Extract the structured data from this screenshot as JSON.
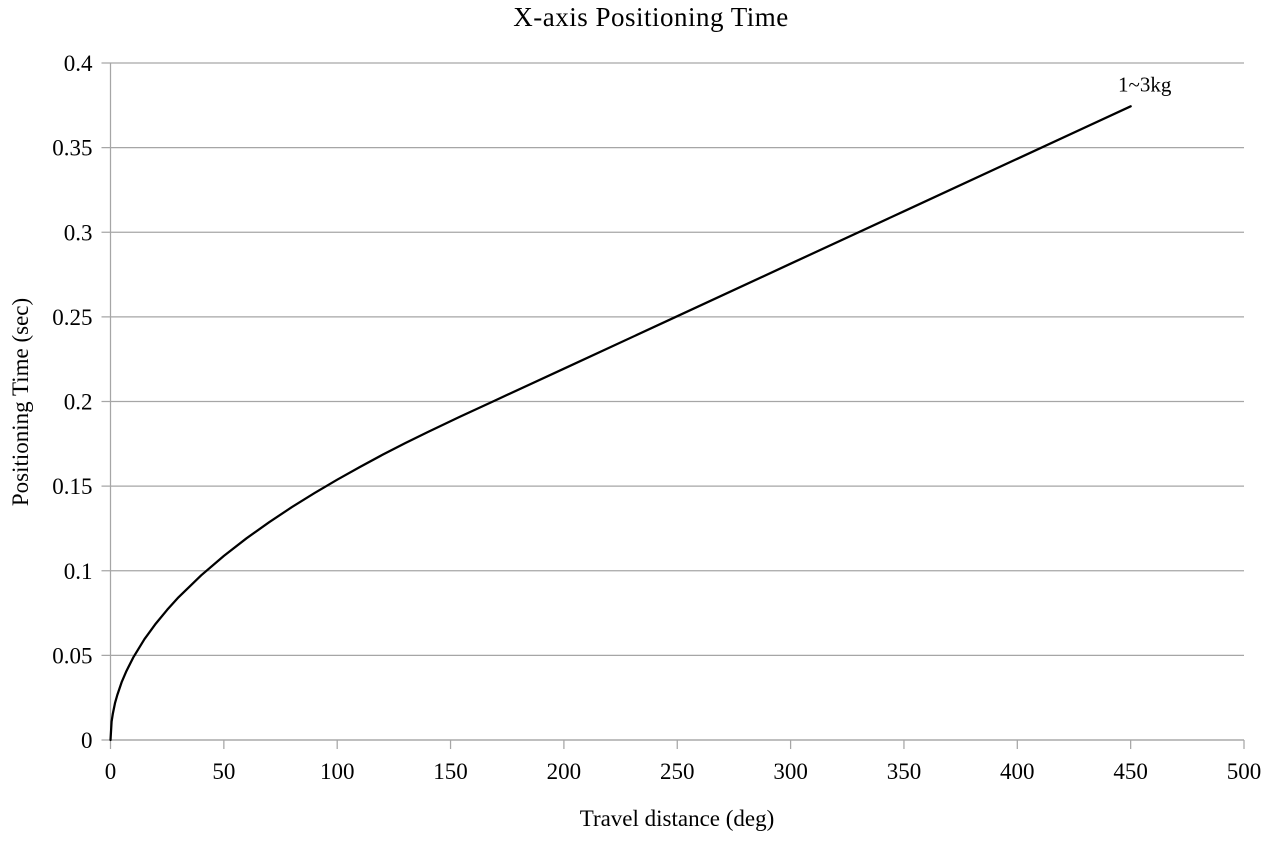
{
  "chart_data": {
    "type": "line",
    "title": "X-axis Positioning Time",
    "xlabel": "Travel distance (deg)",
    "ylabel": "Positioning Time (sec)",
    "xlim": [
      0,
      500
    ],
    "ylim": [
      0,
      0.4
    ],
    "x_ticks": [
      0,
      50,
      100,
      150,
      200,
      250,
      300,
      350,
      400,
      450,
      500
    ],
    "x_tick_labels": [
      "0",
      "50",
      "100",
      "150",
      "200",
      "250",
      "300",
      "350",
      "400",
      "450",
      "500"
    ],
    "y_ticks": [
      0,
      0.05,
      0.1,
      0.15,
      0.2,
      0.25,
      0.3,
      0.35,
      0.4
    ],
    "y_tick_labels": [
      "0",
      "0.05",
      "0.1",
      "0.15",
      "0.2",
      "0.25",
      "0.3",
      "0.35",
      "0.4"
    ],
    "grid": "horizontal-only",
    "legend_position": "none",
    "annotation": {
      "text": "1~3kg",
      "location": "end-of-line"
    },
    "series": [
      {
        "name": "1~3kg",
        "color": "#000000",
        "x": [
          0,
          0.5,
          1,
          2,
          3,
          5,
          7,
          10,
          15,
          20,
          25,
          30,
          40,
          50,
          60,
          70,
          80,
          90,
          100,
          110,
          120,
          130,
          140,
          154,
          170,
          200,
          250,
          300,
          350,
          400,
          450
        ],
        "y": [
          0,
          0.0109,
          0.0154,
          0.0218,
          0.0266,
          0.0344,
          0.0407,
          0.0487,
          0.0596,
          0.0688,
          0.0769,
          0.0843,
          0.0973,
          0.1088,
          0.1192,
          0.1287,
          0.1376,
          0.1459,
          0.1538,
          0.1613,
          0.1685,
          0.1754,
          0.182,
          0.1909,
          0.2008,
          0.2194,
          0.2504,
          0.2814,
          0.3124,
          0.3434,
          0.3744
        ]
      }
    ],
    "colors": {
      "line": "#000000",
      "grid": "#a6a6a6",
      "axis": "#a6a6a6",
      "text": "#000000",
      "background": "#ffffff"
    }
  }
}
